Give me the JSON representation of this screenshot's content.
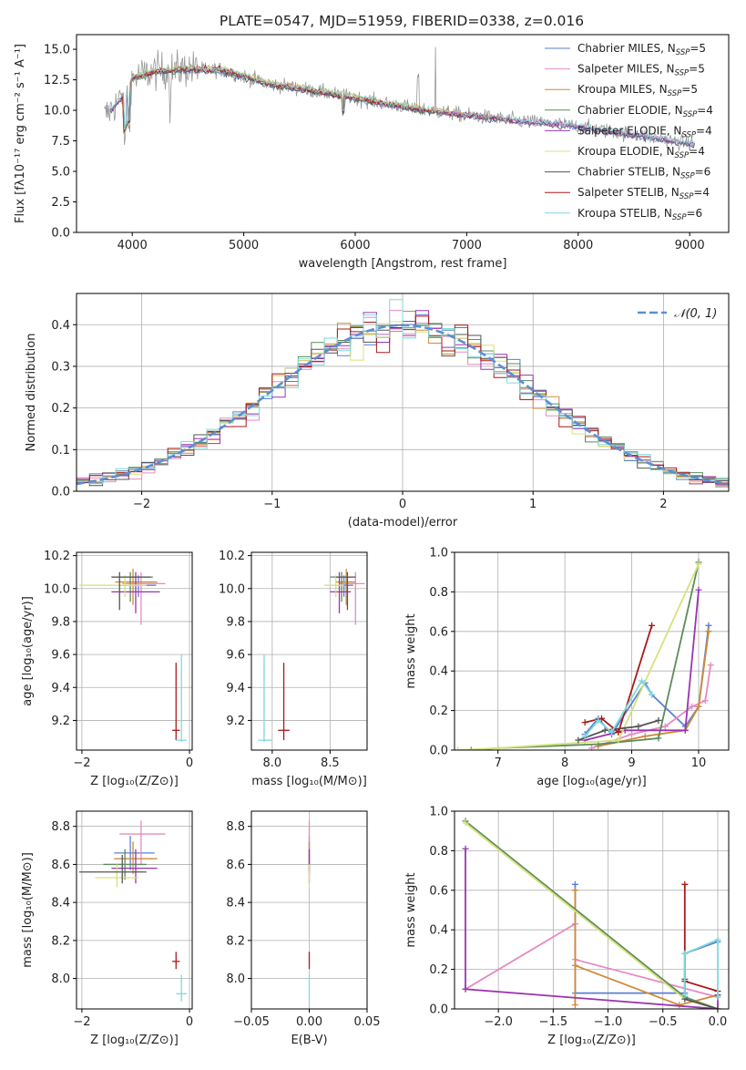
{
  "figure": {
    "title": "PLATE=0547, MJD=51959, FIBERID=0338, z=0.016"
  },
  "series_styles": [
    {
      "name": "Chabrier MILES",
      "color": "#5b7fd6"
    },
    {
      "name": "Salpeter MILES",
      "color": "#e58bc2"
    },
    {
      "name": "Kroupa MILES",
      "color": "#cf8a3a"
    },
    {
      "name": "Chabrier ELODIE",
      "color": "#5c8c5a"
    },
    {
      "name": "Salpeter ELODIE",
      "color": "#9a34b0"
    },
    {
      "name": "Kroupa ELODIE",
      "color": "#d7e27c"
    },
    {
      "name": "Chabrier STELIB",
      "color": "#555555"
    },
    {
      "name": "Salpeter STELIB",
      "color": "#aa1a1a"
    },
    {
      "name": "Kroupa STELIB",
      "color": "#7fdada"
    }
  ],
  "chart_data": [
    {
      "id": "spectrum",
      "type": "line",
      "xlabel": "wavelength [Angstrom, rest frame]",
      "ylabel": "Flux [fλ10⁻¹⁷ erg cm⁻² s⁻¹ A⁻¹]",
      "xlim": [
        3500,
        9350
      ],
      "ylim": [
        0,
        16.2
      ],
      "xticks": [
        4000,
        5000,
        6000,
        7000,
        8000,
        9000
      ],
      "yticks": [
        0.0,
        2.5,
        5.0,
        7.5,
        10.0,
        12.5,
        15.0
      ],
      "legend_position": "top-right",
      "legend": [
        {
          "label": "Chabrier MILES, N",
          "sub": "SSP",
          "suffix": "=5"
        },
        {
          "label": "Salpeter MILES, N",
          "sub": "SSP",
          "suffix": "=5"
        },
        {
          "label": "Kroupa MILES, N",
          "sub": "SSP",
          "suffix": "=5"
        },
        {
          "label": "Chabrier ELODIE, N",
          "sub": "SSP",
          "suffix": "=4"
        },
        {
          "label": "Salpeter ELODIE, N",
          "sub": "SSP",
          "suffix": "=4"
        },
        {
          "label": "Kroupa ELODIE, N",
          "sub": "SSP",
          "suffix": "=4"
        },
        {
          "label": "Chabrier STELIB, N",
          "sub": "SSP",
          "suffix": "=6"
        },
        {
          "label": "Salpeter STELIB, N",
          "sub": "SSP",
          "suffix": "=4"
        },
        {
          "label": "Kroupa STELIB, N",
          "sub": "SSP",
          "suffix": "=6"
        }
      ],
      "continuum_x": [
        3750,
        3900,
        4000,
        4200,
        4500,
        4800,
        5000,
        5200,
        5500,
        6000,
        6500,
        7000,
        7400,
        8000,
        8500,
        9050
      ],
      "continuum_y": [
        9.5,
        11.0,
        12.6,
        13.2,
        13.4,
        13.3,
        12.8,
        12.2,
        11.8,
        11.0,
        10.2,
        9.6,
        9.2,
        8.7,
        8.0,
        7.2
      ],
      "model_ranges": [
        [
          3800,
          9050
        ],
        [
          3800,
          9050
        ],
        [
          3900,
          7420
        ],
        [
          3900,
          6800
        ],
        [
          3800,
          9050
        ],
        [
          3900,
          6800
        ],
        [
          3800,
          9050
        ],
        [
          3900,
          7420
        ],
        [
          3800,
          9050
        ]
      ]
    },
    {
      "id": "residuals",
      "type": "histogram",
      "xlabel": "(data-model)/error",
      "ylabel": "Normed distribution",
      "xlim": [
        -2.5,
        2.5
      ],
      "ylim": [
        0,
        0.475
      ],
      "xticks": [
        -2,
        -1,
        0,
        1,
        2
      ],
      "yticks": [
        0.0,
        0.1,
        0.2,
        0.3,
        0.4
      ],
      "bin_width": 0.1,
      "normal_label": "𝒩(0, 1)"
    },
    {
      "id": "age_vs_Z",
      "type": "errorbar",
      "xlabel": "Z [log₁₀(Z/Z⊙)]",
      "ylabel": "age  [log₁₀(age/yr)]",
      "xlim": [
        -2.1,
        0.05
      ],
      "ylim": [
        9.02,
        10.22
      ],
      "xticks": [
        -2,
        0
      ],
      "yticks": [
        9.2,
        9.4,
        9.6,
        9.8,
        10.0,
        10.2
      ],
      "points": [
        {
          "s": 0,
          "x": -0.95,
          "y": 10.02,
          "xl": -1.3,
          "xh": -0.62,
          "yl": 9.95,
          "yh": 10.08
        },
        {
          "s": 1,
          "x": -0.9,
          "y": 10.03,
          "xl": -1.25,
          "xh": -0.45,
          "yl": 9.78,
          "yh": 10.1
        },
        {
          "s": 2,
          "x": -1.05,
          "y": 10.04,
          "xl": -1.38,
          "xh": -0.6,
          "yl": 9.9,
          "yh": 10.12
        },
        {
          "s": 3,
          "x": -1.1,
          "y": 10.07,
          "xl": -1.45,
          "xh": -0.68,
          "yl": 9.92,
          "yh": 10.1
        },
        {
          "s": 4,
          "x": -1.0,
          "y": 9.98,
          "xl": -1.45,
          "xh": -0.55,
          "yl": 9.85,
          "yh": 10.1
        },
        {
          "s": 5,
          "x": -1.2,
          "y": 10.02,
          "xl": -2.05,
          "xh": -0.8,
          "yl": 9.95,
          "yh": 10.08
        },
        {
          "s": 6,
          "x": -1.3,
          "y": 10.07,
          "xl": -1.45,
          "xh": -0.72,
          "yl": 9.87,
          "yh": 10.1
        },
        {
          "s": 7,
          "x": -0.25,
          "y": 9.14,
          "xl": -0.32,
          "xh": -0.18,
          "yl": 9.08,
          "yh": 9.55
        },
        {
          "s": 8,
          "x": -0.15,
          "y": 9.08,
          "xl": -0.25,
          "xh": -0.05,
          "yl": 9.07,
          "yh": 9.6
        }
      ]
    },
    {
      "id": "age_vs_mass",
      "type": "errorbar",
      "xlabel": "mass [log₁₀(M/M⊙)]",
      "ylabel": "",
      "xlim": [
        7.82,
        8.82
      ],
      "ylim": [
        9.02,
        10.22
      ],
      "xticks": [
        8.0,
        8.5
      ],
      "yticks": [
        9.2,
        9.4,
        9.6,
        9.8,
        10.0,
        10.2
      ],
      "points": [
        {
          "s": 0,
          "x": 8.62,
          "y": 10.02,
          "xl": 8.55,
          "xh": 8.7,
          "yl": 9.95,
          "yh": 10.08
        },
        {
          "s": 1,
          "x": 8.72,
          "y": 10.03,
          "xl": 8.58,
          "xh": 8.8,
          "yl": 9.78,
          "yh": 10.1
        },
        {
          "s": 2,
          "x": 8.64,
          "y": 10.04,
          "xl": 8.55,
          "xh": 8.72,
          "yl": 9.9,
          "yh": 10.12
        },
        {
          "s": 3,
          "x": 8.6,
          "y": 10.07,
          "xl": 8.5,
          "xh": 8.68,
          "yl": 9.92,
          "yh": 10.1
        },
        {
          "s": 4,
          "x": 8.58,
          "y": 9.98,
          "xl": 8.5,
          "xh": 8.68,
          "yl": 9.85,
          "yh": 10.1
        },
        {
          "s": 5,
          "x": 8.55,
          "y": 10.02,
          "xl": 8.45,
          "xh": 8.62,
          "yl": 9.95,
          "yh": 10.08
        },
        {
          "s": 6,
          "x": 8.65,
          "y": 10.07,
          "xl": 8.55,
          "xh": 8.72,
          "yl": 9.87,
          "yh": 10.1
        },
        {
          "s": 7,
          "x": 8.1,
          "y": 9.14,
          "xl": 8.05,
          "xh": 8.15,
          "yl": 9.08,
          "yh": 9.55
        },
        {
          "s": 8,
          "x": 7.93,
          "y": 9.08,
          "xl": 7.88,
          "xh": 8.0,
          "yl": 9.07,
          "yh": 9.6
        }
      ]
    },
    {
      "id": "weight_vs_age",
      "type": "line",
      "xlabel": "age  [log₁₀(age/yr)]",
      "ylabel": "mass weight",
      "xlim": [
        6.35,
        10.45
      ],
      "ylim": [
        0,
        1.0
      ],
      "xticks": [
        7,
        8,
        9,
        10
      ],
      "yticks": [
        0.0,
        0.2,
        0.4,
        0.6,
        0.8,
        1.0
      ],
      "series": [
        {
          "s": 0,
          "x": [
            8.3,
            8.5,
            8.7,
            9.2,
            9.3,
            9.8,
            10.0,
            10.15
          ],
          "y": [
            0.08,
            0.16,
            0.08,
            0.34,
            0.28,
            0.12,
            0.22,
            0.63
          ]
        },
        {
          "s": 1,
          "x": [
            8.4,
            9.0,
            9.5,
            9.9,
            10.1,
            10.18
          ],
          "y": [
            0.01,
            0.08,
            0.12,
            0.22,
            0.25,
            0.43
          ]
        },
        {
          "s": 2,
          "x": [
            8.5,
            9.2,
            9.8,
            10.0,
            10.15
          ],
          "y": [
            0.02,
            0.07,
            0.1,
            0.22,
            0.6
          ]
        },
        {
          "s": 3,
          "x": [
            6.6,
            7.0,
            8.5,
            9.4,
            10.0
          ],
          "y": [
            0.0,
            0.01,
            0.03,
            0.06,
            0.95
          ]
        },
        {
          "s": 4,
          "x": [
            8.3,
            8.9,
            9.8,
            10.0
          ],
          "y": [
            0.05,
            0.1,
            0.1,
            0.81
          ]
        },
        {
          "s": 5,
          "x": [
            6.4,
            7.0,
            8.8,
            10.0
          ],
          "y": [
            0.0,
            0.01,
            0.05,
            0.94
          ]
        },
        {
          "s": 6,
          "x": [
            8.2,
            8.6,
            9.1,
            9.4
          ],
          "y": [
            0.05,
            0.1,
            0.12,
            0.15
          ]
        },
        {
          "s": 7,
          "x": [
            8.3,
            8.55,
            8.8,
            9.3
          ],
          "y": [
            0.14,
            0.16,
            0.09,
            0.63
          ]
        },
        {
          "s": 8,
          "x": [
            8.3,
            8.5,
            8.7,
            9.15,
            9.3
          ],
          "y": [
            0.07,
            0.15,
            0.09,
            0.35,
            0.28
          ]
        }
      ]
    },
    {
      "id": "mass_vs_Z",
      "type": "errorbar",
      "xlabel": "Z [log₁₀(Z/Z⊙)]",
      "ylabel": "mass [log₁₀(M/M⊙)]",
      "xlim": [
        -2.1,
        0.05
      ],
      "ylim": [
        7.84,
        8.88
      ],
      "xticks": [
        -2,
        0
      ],
      "yticks": [
        8.0,
        8.2,
        8.4,
        8.6,
        8.8
      ],
      "points": [
        {
          "s": 0,
          "x": -1.1,
          "y": 8.66,
          "xl": -1.4,
          "xh": -0.65,
          "yl": 8.57,
          "yh": 8.75
        },
        {
          "s": 1,
          "x": -0.9,
          "y": 8.76,
          "xl": -1.3,
          "xh": -0.45,
          "yl": 8.6,
          "yh": 8.83
        },
        {
          "s": 2,
          "x": -1.05,
          "y": 8.63,
          "xl": -1.4,
          "xh": -0.6,
          "yl": 8.55,
          "yh": 8.72
        },
        {
          "s": 3,
          "x": -1.2,
          "y": 8.6,
          "xl": -1.6,
          "xh": -0.8,
          "yl": 8.52,
          "yh": 8.68
        },
        {
          "s": 4,
          "x": -1.0,
          "y": 8.58,
          "xl": -1.45,
          "xh": -0.6,
          "yl": 8.5,
          "yh": 8.68
        },
        {
          "s": 5,
          "x": -1.35,
          "y": 8.53,
          "xl": -1.75,
          "xh": -0.95,
          "yl": 8.48,
          "yh": 8.6
        },
        {
          "s": 6,
          "x": -1.25,
          "y": 8.56,
          "xl": -2.05,
          "xh": -0.8,
          "yl": 8.5,
          "yh": 8.65
        },
        {
          "s": 7,
          "x": -0.25,
          "y": 8.09,
          "xl": -0.32,
          "xh": -0.18,
          "yl": 8.05,
          "yh": 8.14
        },
        {
          "s": 8,
          "x": -0.15,
          "y": 7.92,
          "xl": -0.25,
          "xh": -0.05,
          "yl": 7.88,
          "yh": 8.02
        }
      ]
    },
    {
      "id": "mass_vs_ebv",
      "type": "errorbar",
      "xlabel": "E(B-V)",
      "ylabel": "",
      "xlim": [
        -0.05,
        0.05
      ],
      "ylim": [
        7.84,
        8.88
      ],
      "xticks": [
        -0.05,
        0.0,
        0.05
      ],
      "yticks": [
        8.0,
        8.2,
        8.4,
        8.6,
        8.8
      ],
      "points": [
        {
          "s": 0,
          "x": 0.0,
          "y": 8.66,
          "xl": 0.0,
          "xh": 0.0,
          "yl": 8.57,
          "yh": 8.75
        },
        {
          "s": 1,
          "x": 0.0,
          "y": 8.76,
          "xl": 0.0,
          "xh": 0.0,
          "yl": 8.6,
          "yh": 8.83
        },
        {
          "s": 2,
          "x": 0.0,
          "y": 8.63,
          "xl": 0.0,
          "xh": 0.0,
          "yl": 8.55,
          "yh": 8.72
        },
        {
          "s": 4,
          "x": 0.0,
          "y": 8.58,
          "xl": 0.0,
          "xh": 0.0,
          "yl": 8.5,
          "yh": 8.68
        },
        {
          "s": 5,
          "x": 0.0,
          "y": 8.53,
          "xl": 0.0,
          "xh": 0.0,
          "yl": 8.48,
          "yh": 8.6
        },
        {
          "s": 7,
          "x": 0.0,
          "y": 8.09,
          "xl": 0.0,
          "xh": 0.0,
          "yl": 8.05,
          "yh": 8.14
        },
        {
          "s": 8,
          "x": 0.0,
          "y": 7.92,
          "xl": 0.0,
          "xh": 0.0,
          "yl": 7.88,
          "yh": 8.02
        }
      ]
    },
    {
      "id": "weight_vs_Z",
      "type": "line",
      "xlabel": "Z [log₁₀(Z/Z⊙)]",
      "ylabel": "mass weight",
      "xlim": [
        -2.4,
        0.1
      ],
      "ylim": [
        0,
        1.0
      ],
      "xticks": [
        -2.0,
        -1.5,
        -1.0,
        -0.5,
        0.0
      ],
      "yticks": [
        0.0,
        0.2,
        0.4,
        0.6,
        0.8,
        1.0
      ],
      "series": [
        {
          "s": 0,
          "x": [
            -1.3,
            -1.3,
            -0.3,
            -0.3,
            0.0
          ],
          "y": [
            0.63,
            0.08,
            0.08,
            0.28,
            0.34
          ]
        },
        {
          "s": 1,
          "x": [
            -2.3,
            -1.3,
            -1.3,
            0.0
          ],
          "y": [
            0.1,
            0.43,
            0.25,
            0.06
          ]
        },
        {
          "s": 2,
          "x": [
            -1.3,
            -1.3,
            -1.3,
            -0.35,
            0.0
          ],
          "y": [
            0.6,
            0.02,
            0.22,
            0.02,
            0.07
          ]
        },
        {
          "s": 3,
          "x": [
            -2.3,
            -0.3,
            0.0
          ],
          "y": [
            0.95,
            0.06,
            0.0
          ]
        },
        {
          "s": 4,
          "x": [
            -2.3,
            -2.3,
            0.0,
            0.0
          ],
          "y": [
            0.81,
            0.1,
            0.0,
            0.07
          ]
        },
        {
          "s": 5,
          "x": [
            -2.3,
            -0.3,
            0.0
          ],
          "y": [
            0.94,
            0.05,
            0.0
          ]
        },
        {
          "s": 6,
          "x": [
            -0.3,
            -0.3,
            0.0
          ],
          "y": [
            0.15,
            0.05,
            0.0
          ]
        },
        {
          "s": 7,
          "x": [
            -0.3,
            -0.3,
            0.0
          ],
          "y": [
            0.63,
            0.14,
            0.09
          ]
        },
        {
          "s": 8,
          "x": [
            -0.3,
            -0.3,
            0.0,
            0.0
          ],
          "y": [
            0.07,
            0.28,
            0.35,
            0.06
          ]
        }
      ]
    }
  ]
}
